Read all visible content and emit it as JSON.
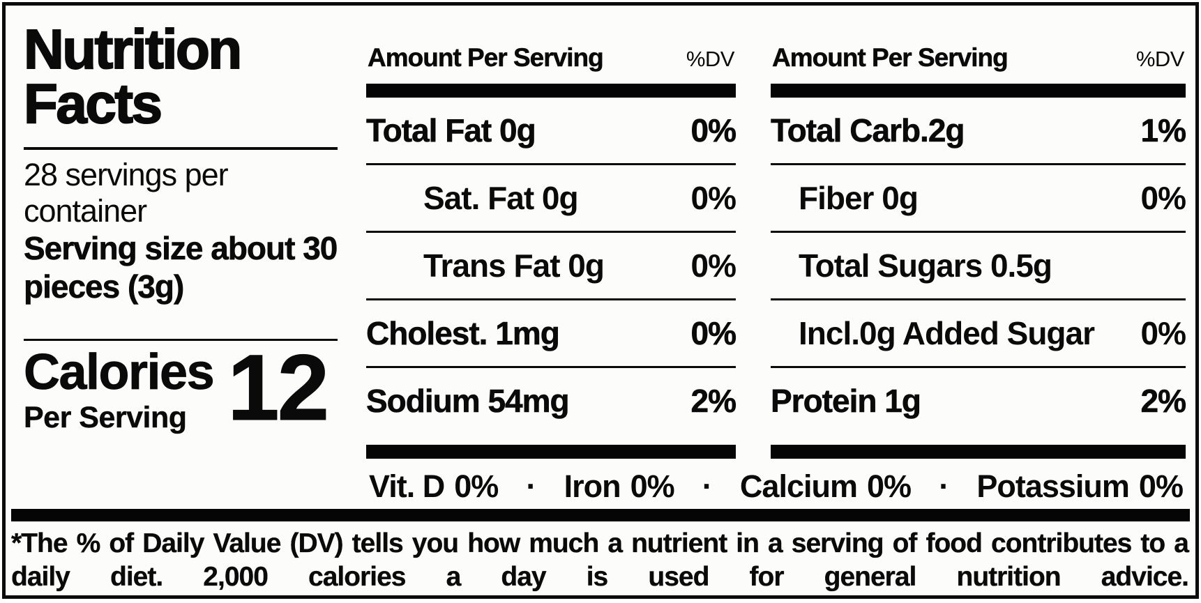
{
  "label": {
    "title": "Nutrition Facts",
    "servings_per_container": "28 servings per container",
    "serving_size_label": "Serving size",
    "serving_size_value": "about 30 pieces (3g)",
    "calories_label": "Calories",
    "calories_sub": "Per Serving",
    "calories_value": "12"
  },
  "columns": [
    {
      "header": "Amount Per Serving",
      "dv_header": "%DV",
      "rows": [
        {
          "name": "Total Fat 0g",
          "dv": "0%"
        },
        {
          "name": "Sat. Fat 0g",
          "dv": "0%"
        },
        {
          "name": "Trans Fat 0g",
          "dv": "0%"
        },
        {
          "name": "Cholest. 1mg",
          "dv": "0%"
        },
        {
          "name": "Sodium 54mg",
          "dv": "2%"
        }
      ]
    },
    {
      "header": "Amount Per Serving",
      "dv_header": "%DV",
      "rows": [
        {
          "name": "Total Carb.2g",
          "dv": "1%"
        },
        {
          "name": "Fiber 0g",
          "dv": "0%"
        },
        {
          "name": "Total Sugars 0.5g",
          "dv": ""
        },
        {
          "name": "Incl.0g Added Sugar",
          "dv": "0%"
        },
        {
          "name": "Protein 1g",
          "dv": "2%"
        }
      ]
    }
  ],
  "micronutrients": [
    {
      "name": "Vit. D",
      "dv": "0%"
    },
    {
      "name": "Iron",
      "dv": "0%"
    },
    {
      "name": "Calcium",
      "dv": "0%"
    },
    {
      "name": "Potassium",
      "dv": "0%"
    }
  ],
  "separator": "·",
  "footnote": "*The % of Daily Value (DV) tells you how much a nutrient in a serving of food contributes to a daily diet. 2,000 calories a day is used for general nutrition advice.",
  "colors": {
    "text": "#0a0a0a",
    "background": "#fcfcfa",
    "bar": "#050505"
  }
}
